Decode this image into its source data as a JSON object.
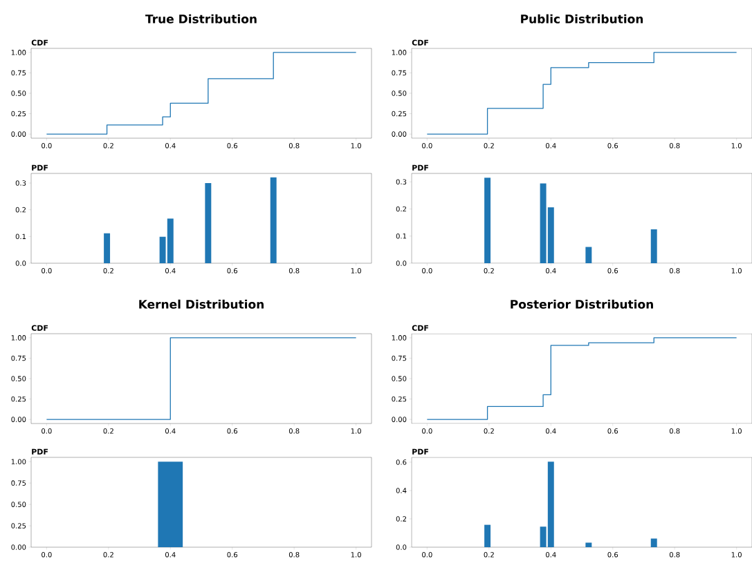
{
  "chart_data": [
    {
      "type": "step",
      "title": "True Distribution",
      "subtitle": "CDF",
      "x": [
        0,
        0.195,
        0.375,
        0.4,
        0.522,
        0.733,
        1.0
      ],
      "values": [
        0,
        0.112,
        0.211,
        0.378,
        0.678,
        1.0,
        1.0
      ],
      "color": "#1f77b4",
      "xlim": [
        -0.05,
        1.05
      ],
      "ylim": [
        -0.05,
        1.05
      ],
      "xticks": [
        {
          "value": 0,
          "label": "0.0"
        },
        {
          "value": 0.2,
          "label": "0.2"
        },
        {
          "value": 0.4,
          "label": "0.4"
        },
        {
          "value": 0.6,
          "label": "0.6"
        },
        {
          "value": 0.8,
          "label": "0.8"
        },
        {
          "value": 1,
          "label": "1.0"
        }
      ],
      "yticks": [
        {
          "value": 0,
          "label": "0.00"
        },
        {
          "value": 0.25,
          "label": "0.25"
        },
        {
          "value": 0.5,
          "label": "0.50"
        },
        {
          "value": 0.75,
          "label": "0.75"
        },
        {
          "value": 1,
          "label": "1.00"
        }
      ]
    },
    {
      "type": "step",
      "title": "Public Distribution",
      "subtitle": "CDF",
      "x": [
        0,
        0.195,
        0.375,
        0.4,
        0.522,
        0.733,
        1.0
      ],
      "values": [
        0,
        0.315,
        0.609,
        0.815,
        0.875,
        1.0,
        1.0
      ],
      "color": "#1f77b4",
      "xlim": [
        -0.05,
        1.05
      ],
      "ylim": [
        -0.05,
        1.05
      ],
      "xticks": [
        {
          "value": 0,
          "label": "0.0"
        },
        {
          "value": 0.2,
          "label": "0.2"
        },
        {
          "value": 0.4,
          "label": "0.4"
        },
        {
          "value": 0.6,
          "label": "0.6"
        },
        {
          "value": 0.8,
          "label": "0.8"
        },
        {
          "value": 1,
          "label": "1.0"
        }
      ],
      "yticks": [
        {
          "value": 0,
          "label": "0.00"
        },
        {
          "value": 0.25,
          "label": "0.25"
        },
        {
          "value": 0.5,
          "label": "0.50"
        },
        {
          "value": 0.75,
          "label": "0.75"
        },
        {
          "value": 1,
          "label": "1.00"
        }
      ]
    },
    {
      "type": "histogram",
      "subtitle": "PDF",
      "bins": [
        0.185,
        0.205,
        0.365,
        0.385,
        0.39,
        0.41,
        0.512,
        0.532,
        0.723,
        0.743
      ],
      "values": [
        0.112,
        0,
        0.099,
        0,
        0.167,
        0,
        0.3,
        0,
        0.321
      ],
      "color": "#1f77b4",
      "xlim": [
        -0.05,
        1.05
      ],
      "ylim": [
        0,
        0.336
      ],
      "xticks": [
        {
          "value": 0,
          "label": "0.0"
        },
        {
          "value": 0.2,
          "label": "0.2"
        },
        {
          "value": 0.4,
          "label": "0.4"
        },
        {
          "value": 0.6,
          "label": "0.6"
        },
        {
          "value": 0.8,
          "label": "0.8"
        },
        {
          "value": 1,
          "label": "1.0"
        }
      ],
      "yticks": [
        {
          "value": 0,
          "label": "0.0"
        },
        {
          "value": 0.1,
          "label": "0.1"
        },
        {
          "value": 0.2,
          "label": "0.2"
        },
        {
          "value": 0.3,
          "label": "0.3"
        }
      ]
    },
    {
      "type": "histogram",
      "subtitle": "PDF",
      "bins": [
        0.185,
        0.205,
        0.365,
        0.385,
        0.39,
        0.41,
        0.512,
        0.532,
        0.723,
        0.743
      ],
      "values": [
        0.315,
        0,
        0.294,
        0,
        0.206,
        0,
        0.06,
        0,
        0.125
      ],
      "color": "#1f77b4",
      "xlim": [
        -0.05,
        1.05
      ],
      "ylim": [
        0,
        0.331
      ],
      "xticks": [
        {
          "value": 0,
          "label": "0.0"
        },
        {
          "value": 0.2,
          "label": "0.2"
        },
        {
          "value": 0.4,
          "label": "0.4"
        },
        {
          "value": 0.6,
          "label": "0.6"
        },
        {
          "value": 0.8,
          "label": "0.8"
        },
        {
          "value": 1,
          "label": "1.0"
        }
      ],
      "yticks": [
        {
          "value": 0,
          "label": "0.0"
        },
        {
          "value": 0.1,
          "label": "0.1"
        },
        {
          "value": 0.2,
          "label": "0.2"
        },
        {
          "value": 0.3,
          "label": "0.3"
        }
      ]
    },
    {
      "type": "step",
      "title": "Kernel Distribution",
      "subtitle": "CDF",
      "x": [
        0,
        0.4,
        1.0
      ],
      "values": [
        0,
        1.0,
        1.0
      ],
      "color": "#1f77b4",
      "xlim": [
        -0.05,
        1.05
      ],
      "ylim": [
        -0.05,
        1.05
      ],
      "xticks": [
        {
          "value": 0,
          "label": "0.0"
        },
        {
          "value": 0.2,
          "label": "0.2"
        },
        {
          "value": 0.4,
          "label": "0.4"
        },
        {
          "value": 0.6,
          "label": "0.6"
        },
        {
          "value": 0.8,
          "label": "0.8"
        },
        {
          "value": 1,
          "label": "1.0"
        }
      ],
      "yticks": [
        {
          "value": 0,
          "label": "0.00"
        },
        {
          "value": 0.25,
          "label": "0.25"
        },
        {
          "value": 0.5,
          "label": "0.50"
        },
        {
          "value": 0.75,
          "label": "0.75"
        },
        {
          "value": 1,
          "label": "1.00"
        }
      ]
    },
    {
      "type": "step",
      "title": "Posterior Distribution",
      "subtitle": "CDF",
      "x": [
        0,
        0.195,
        0.375,
        0.4,
        0.522,
        0.733,
        1.0
      ],
      "values": [
        0,
        0.158,
        0.303,
        0.907,
        0.939,
        1.0,
        1.0
      ],
      "color": "#1f77b4",
      "xlim": [
        -0.05,
        1.05
      ],
      "ylim": [
        -0.05,
        1.05
      ],
      "xticks": [
        {
          "value": 0,
          "label": "0.0"
        },
        {
          "value": 0.2,
          "label": "0.2"
        },
        {
          "value": 0.4,
          "label": "0.4"
        },
        {
          "value": 0.6,
          "label": "0.6"
        },
        {
          "value": 0.8,
          "label": "0.8"
        },
        {
          "value": 1,
          "label": "1.0"
        }
      ],
      "yticks": [
        {
          "value": 0,
          "label": "0.00"
        },
        {
          "value": 0.25,
          "label": "0.25"
        },
        {
          "value": 0.5,
          "label": "0.50"
        },
        {
          "value": 0.75,
          "label": "0.75"
        },
        {
          "value": 1,
          "label": "1.00"
        }
      ]
    },
    {
      "type": "histogram",
      "subtitle": "PDF",
      "bins": [
        0.36,
        0.44
      ],
      "values": [
        1.0
      ],
      "color": "#1f77b4",
      "xlim": [
        -0.05,
        1.05
      ],
      "ylim": [
        0,
        1.05
      ],
      "xticks": [
        {
          "value": 0,
          "label": "0.0"
        },
        {
          "value": 0.2,
          "label": "0.2"
        },
        {
          "value": 0.4,
          "label": "0.4"
        },
        {
          "value": 0.6,
          "label": "0.6"
        },
        {
          "value": 0.8,
          "label": "0.8"
        },
        {
          "value": 1,
          "label": "1.0"
        }
      ],
      "yticks": [
        {
          "value": 0,
          "label": "0.00"
        },
        {
          "value": 0.25,
          "label": "0.25"
        },
        {
          "value": 0.5,
          "label": "0.50"
        },
        {
          "value": 0.75,
          "label": "0.75"
        },
        {
          "value": 1,
          "label": "1.00"
        }
      ]
    },
    {
      "type": "histogram",
      "subtitle": "PDF",
      "bins": [
        0.185,
        0.205,
        0.365,
        0.385,
        0.39,
        0.41,
        0.512,
        0.532,
        0.723,
        0.743
      ],
      "values": [
        0.158,
        0,
        0.145,
        0,
        0.604,
        0,
        0.032,
        0,
        0.061
      ],
      "color": "#1f77b4",
      "xlim": [
        -0.05,
        1.05
      ],
      "ylim": [
        0,
        0.634
      ],
      "xticks": [
        {
          "value": 0,
          "label": "0.0"
        },
        {
          "value": 0.2,
          "label": "0.2"
        },
        {
          "value": 0.4,
          "label": "0.4"
        },
        {
          "value": 0.6,
          "label": "0.6"
        },
        {
          "value": 0.8,
          "label": "0.8"
        },
        {
          "value": 1,
          "label": "1.0"
        }
      ],
      "yticks": [
        {
          "value": 0,
          "label": "0.0"
        },
        {
          "value": 0.2,
          "label": "0.2"
        },
        {
          "value": 0.4,
          "label": "0.4"
        },
        {
          "value": 0.6,
          "label": "0.6"
        }
      ]
    }
  ]
}
